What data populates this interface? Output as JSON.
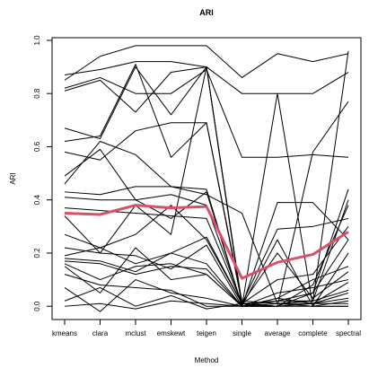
{
  "chart_data": {
    "type": "line",
    "title": "ARI",
    "x_label": "Method",
    "y_label": "ARI",
    "categories": [
      "kmeans",
      "clara",
      "mclust",
      "emskewt",
      "teigen",
      "single",
      "average",
      "complete",
      "spectral"
    ],
    "ylim": [
      -0.05,
      1.01
    ],
    "yticks": [
      {
        "value": 0,
        "label": "0.0"
      },
      {
        "value": 0.2,
        "label": "0.2"
      },
      {
        "value": 0.4,
        "label": "0.4"
      },
      {
        "value": 0.6,
        "label": "0.6"
      },
      {
        "value": 0.8,
        "label": "0.8"
      },
      {
        "value": 1,
        "label": "1.0"
      }
    ],
    "series": [
      {
        "color": "#000000",
        "values": [
          0.87,
          0.89,
          0.92,
          0.92,
          0.9,
          0.8,
          0.8,
          0.8,
          0.88
        ]
      },
      {
        "color": "#000000",
        "values": [
          0.85,
          0.94,
          0.98,
          0.98,
          0.98,
          0.86,
          0.95,
          0.92,
          0.95
        ]
      },
      {
        "color": "#000000",
        "values": [
          0.82,
          0.86,
          0.8,
          0.8,
          0.89,
          0.56,
          0.56,
          0.57,
          0.56
        ]
      },
      {
        "color": "#000000",
        "values": [
          0.81,
          0.85,
          0.73,
          0.88,
          0.9,
          0.0,
          0.8,
          0.0,
          0.0
        ]
      },
      {
        "color": "#000000",
        "values": [
          0.67,
          0.63,
          0.9,
          0.72,
          0.9,
          0.01,
          0.0,
          0.58,
          0.77
        ]
      },
      {
        "color": "#000000",
        "values": [
          0.62,
          0.64,
          0.91,
          0.56,
          0.69,
          0.02,
          0.01,
          0.02,
          0.96
        ]
      },
      {
        "color": "#000000",
        "values": [
          0.58,
          0.55,
          0.66,
          0.69,
          0.69,
          0.01,
          0.02,
          0.05,
          0.44
        ]
      },
      {
        "color": "#000000",
        "values": [
          0.49,
          0.59,
          0.4,
          0.33,
          0.43,
          0.0,
          0.39,
          0.39,
          0.25
        ]
      },
      {
        "color": "#000000",
        "values": [
          0.46,
          0.62,
          0.57,
          0.45,
          0.42,
          0.35,
          0.01,
          0.02,
          0.4
        ]
      },
      {
        "color": "#000000",
        "values": [
          0.43,
          0.42,
          0.45,
          0.45,
          0.44,
          0.0,
          0.0,
          0.08,
          0.38
        ]
      },
      {
        "color": "#000000",
        "values": [
          0.41,
          0.4,
          0.4,
          0.42,
          0.38,
          0.01,
          0.0,
          0.05,
          0.25
        ]
      },
      {
        "color": "#000000",
        "values": [
          0.37,
          0.36,
          0.35,
          0.34,
          0.33,
          0.01,
          0.29,
          0.3,
          0.33
        ]
      },
      {
        "color": "#000000",
        "values": [
          0.34,
          0.2,
          0.38,
          0.27,
          0.9,
          0.0,
          0.25,
          0.0,
          0.2
        ]
      },
      {
        "color": "#000000",
        "values": [
          0.27,
          0.22,
          0.27,
          0.38,
          0.25,
          0.01,
          0.2,
          0.03,
          0.13
        ]
      },
      {
        "color": "#000000",
        "values": [
          0.22,
          0.2,
          0.19,
          0.14,
          0.23,
          0.0,
          0.03,
          0.1,
          0.15
        ]
      },
      {
        "color": "#000000",
        "values": [
          0.19,
          0.22,
          0.16,
          0.2,
          0.26,
          0.01,
          0.1,
          0.12,
          0.3
        ]
      },
      {
        "color": "#000000",
        "values": [
          0.18,
          0.17,
          0.13,
          0.2,
          0.16,
          0.0,
          0.05,
          0.07,
          0.1
        ]
      },
      {
        "color": "#000000",
        "values": [
          0.17,
          0.16,
          0.12,
          0.15,
          0.14,
          0.0,
          0.03,
          0.01,
          0.09
        ]
      },
      {
        "color": "#000000",
        "values": [
          0.16,
          0.1,
          0.15,
          0.16,
          0.12,
          0.0,
          0.02,
          0.02,
          0.06
        ]
      },
      {
        "color": "#000000",
        "values": [
          0.15,
          0.05,
          0.22,
          0.1,
          0.12,
          0.0,
          0.01,
          0.01,
          0.05
        ]
      },
      {
        "color": "#000000",
        "values": [
          0.12,
          0.08,
          0.07,
          0.06,
          0.0,
          0.0,
          0.0,
          0.01,
          0.03
        ]
      },
      {
        "color": "#000000",
        "values": [
          0.07,
          -0.02,
          0.1,
          0.05,
          0.03,
          0.0,
          0.0,
          0.0,
          0.02
        ]
      },
      {
        "color": "#000000",
        "values": [
          0.02,
          0.07,
          0.0,
          0.04,
          -0.01,
          0.01,
          0.0,
          0.01,
          0.01
        ]
      },
      {
        "color": "#000000",
        "values": [
          0.0,
          0.01,
          -0.01,
          0.02,
          0.01,
          0.0,
          0.01,
          0.0,
          0.0
        ]
      },
      {
        "color": "#d9506b",
        "linewidth": 3,
        "values": [
          0.35,
          0.345,
          0.38,
          0.37,
          0.375,
          0.105,
          0.165,
          0.195,
          0.28
        ]
      }
    ]
  }
}
